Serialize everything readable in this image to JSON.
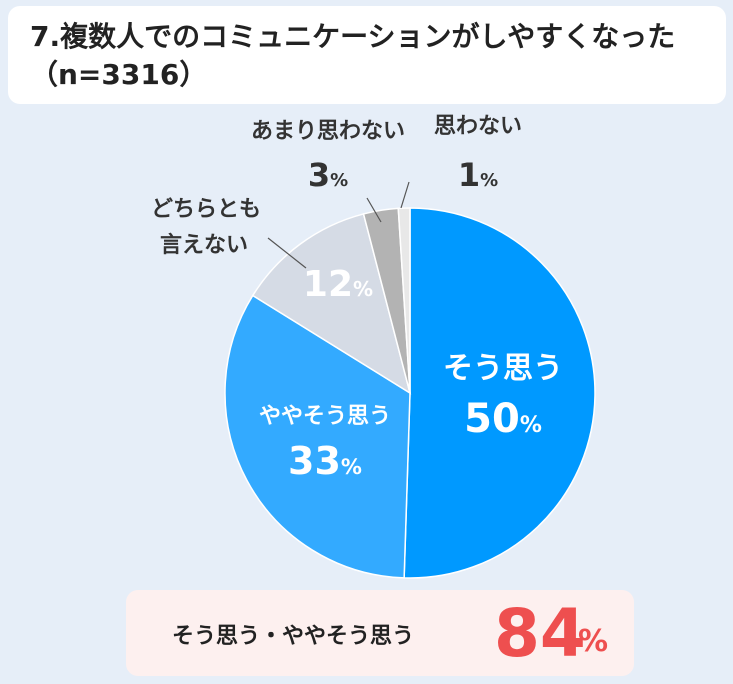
{
  "title": "7.複数人でのコミュニケーションがしやすくなった（n=3316）",
  "chart_data": {
    "type": "pie",
    "title": "7.複数人でのコミュニケーションがしやすくなった（n=3316）",
    "slices": [
      {
        "label": "そう思う",
        "value": 50,
        "color": "#0099ff"
      },
      {
        "label": "ややそう思う",
        "value": 33,
        "color": "#33aaff"
      },
      {
        "label": "どちらとも言えない",
        "value": 12,
        "color": "#d5dbe5"
      },
      {
        "label": "あまり思わない",
        "value": 3,
        "color": "#b3b3b3"
      },
      {
        "label": "思わない",
        "value": 1,
        "color": "#e8e8e8"
      }
    ],
    "percent_sign": "%",
    "summary": {
      "label": "そう思う・ややそう思う",
      "value": "84",
      "unit": "%"
    }
  }
}
